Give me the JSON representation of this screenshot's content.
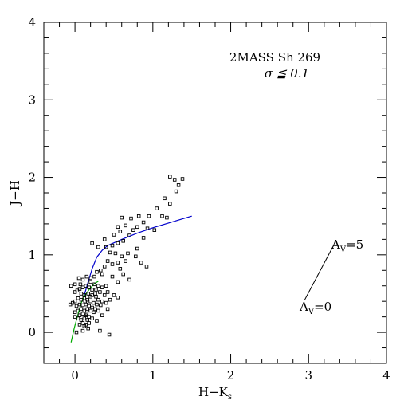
{
  "chart_data": {
    "type": "scatter",
    "title": "2MASS Sh 269",
    "subtitle": "σ ≦ 0.1",
    "xlabel": "H−K",
    "xlabel_sub": "s",
    "ylabel": "J−H",
    "xlim": [
      -0.4,
      4
    ],
    "ylim": [
      -0.4,
      4
    ],
    "xticks": [
      0,
      1,
      2,
      3,
      4
    ],
    "yticks": [
      0,
      1,
      2,
      3,
      4
    ],
    "xtick_labels": [
      "0",
      "1",
      "2",
      "3",
      "4"
    ],
    "ytick_labels": [
      "0",
      "1",
      "2",
      "3",
      "4"
    ],
    "grid": false,
    "reddening_vector": {
      "start": [
        2.95,
        0.42
      ],
      "end": [
        3.32,
        1.12
      ],
      "start_label": "A",
      "start_label_sub": "V",
      "start_label_tail": "=0",
      "end_label": "A",
      "end_label_sub": "V",
      "end_label_tail": "=5",
      "color": "#000000"
    },
    "curves": [
      {
        "color": "#0000cc",
        "points": [
          [
            0.12,
            0.48
          ],
          [
            0.16,
            0.62
          ],
          [
            0.22,
            0.82
          ],
          [
            0.28,
            0.97
          ],
          [
            0.35,
            1.06
          ],
          [
            0.42,
            1.12
          ],
          [
            0.6,
            1.2
          ],
          [
            0.8,
            1.28
          ],
          [
            1.0,
            1.35
          ],
          [
            1.2,
            1.41
          ],
          [
            1.4,
            1.47
          ],
          [
            1.5,
            1.5
          ]
        ]
      },
      {
        "color": "#00aa00",
        "points": [
          [
            -0.05,
            -0.13
          ],
          [
            -0.01,
            0.05
          ],
          [
            0.03,
            0.2
          ],
          [
            0.08,
            0.38
          ],
          [
            0.13,
            0.48
          ],
          [
            0.18,
            0.55
          ],
          [
            0.24,
            0.62
          ],
          [
            0.3,
            0.66
          ]
        ]
      }
    ],
    "series": [
      {
        "marker": "open-square",
        "color": "#000000",
        "points": [
          [
            1.22,
            2.01
          ],
          [
            1.28,
            1.97
          ],
          [
            1.38,
            1.98
          ],
          [
            1.33,
            1.9
          ],
          [
            1.3,
            1.82
          ],
          [
            1.15,
            1.73
          ],
          [
            1.22,
            1.66
          ],
          [
            1.05,
            1.6
          ],
          [
            1.12,
            1.5
          ],
          [
            1.18,
            1.48
          ],
          [
            0.95,
            1.5
          ],
          [
            0.82,
            1.5
          ],
          [
            0.72,
            1.47
          ],
          [
            0.6,
            1.48
          ],
          [
            0.88,
            1.42
          ],
          [
            0.8,
            1.36
          ],
          [
            0.93,
            1.34
          ],
          [
            1.02,
            1.32
          ],
          [
            0.75,
            1.32
          ],
          [
            0.65,
            1.38
          ],
          [
            0.55,
            1.36
          ],
          [
            0.58,
            1.3
          ],
          [
            0.5,
            1.26
          ],
          [
            0.7,
            1.25
          ],
          [
            0.88,
            1.22
          ],
          [
            0.62,
            1.18
          ],
          [
            0.55,
            1.15
          ],
          [
            0.48,
            1.12
          ],
          [
            0.4,
            1.1
          ],
          [
            0.3,
            1.1
          ],
          [
            0.22,
            1.15
          ],
          [
            0.38,
            1.2
          ],
          [
            0.45,
            1.03
          ],
          [
            0.52,
            1.02
          ],
          [
            0.6,
            0.98
          ],
          [
            0.68,
            1.02
          ],
          [
            0.8,
            1.08
          ],
          [
            0.78,
            0.98
          ],
          [
            0.85,
            0.9
          ],
          [
            0.92,
            0.85
          ],
          [
            0.65,
            0.92
          ],
          [
            0.55,
            0.9
          ],
          [
            0.48,
            0.88
          ],
          [
            0.58,
            0.82
          ],
          [
            0.62,
            0.75
          ],
          [
            0.7,
            0.68
          ],
          [
            0.55,
            0.65
          ],
          [
            0.48,
            0.72
          ],
          [
            0.42,
            0.92
          ],
          [
            0.38,
            0.85
          ],
          [
            0.33,
            0.8
          ],
          [
            0.35,
            0.75
          ],
          [
            0.28,
            0.78
          ],
          [
            0.25,
            0.72
          ],
          [
            0.2,
            0.7
          ],
          [
            0.15,
            0.72
          ],
          [
            0.1,
            0.68
          ],
          [
            0.05,
            0.7
          ],
          [
            0.0,
            0.62
          ],
          [
            -0.05,
            0.6
          ],
          [
            0.2,
            0.65
          ],
          [
            0.25,
            0.62
          ],
          [
            0.3,
            0.6
          ],
          [
            0.35,
            0.58
          ],
          [
            0.4,
            0.6
          ],
          [
            0.42,
            0.52
          ],
          [
            0.38,
            0.48
          ],
          [
            0.32,
            0.52
          ],
          [
            0.27,
            0.55
          ],
          [
            0.22,
            0.55
          ],
          [
            0.18,
            0.58
          ],
          [
            0.14,
            0.6
          ],
          [
            0.1,
            0.58
          ],
          [
            0.06,
            0.56
          ],
          [
            0.03,
            0.54
          ],
          [
            0.0,
            0.52
          ],
          [
            0.08,
            0.5
          ],
          [
            0.12,
            0.48
          ],
          [
            0.17,
            0.5
          ],
          [
            0.22,
            0.48
          ],
          [
            0.27,
            0.46
          ],
          [
            0.3,
            0.42
          ],
          [
            0.35,
            0.4
          ],
          [
            0.4,
            0.38
          ],
          [
            0.33,
            0.35
          ],
          [
            0.28,
            0.36
          ],
          [
            0.24,
            0.38
          ],
          [
            0.2,
            0.4
          ],
          [
            0.16,
            0.42
          ],
          [
            0.12,
            0.44
          ],
          [
            0.08,
            0.42
          ],
          [
            0.04,
            0.44
          ],
          [
            0.0,
            0.4
          ],
          [
            -0.03,
            0.38
          ],
          [
            -0.06,
            0.36
          ],
          [
            0.02,
            0.34
          ],
          [
            0.06,
            0.36
          ],
          [
            0.1,
            0.35
          ],
          [
            0.14,
            0.36
          ],
          [
            0.18,
            0.34
          ],
          [
            0.22,
            0.32
          ],
          [
            0.26,
            0.3
          ],
          [
            0.3,
            0.28
          ],
          [
            0.24,
            0.26
          ],
          [
            0.2,
            0.28
          ],
          [
            0.16,
            0.3
          ],
          [
            0.12,
            0.28
          ],
          [
            0.08,
            0.3
          ],
          [
            0.04,
            0.28
          ],
          [
            0.0,
            0.26
          ],
          [
            0.06,
            0.22
          ],
          [
            0.1,
            0.24
          ],
          [
            0.14,
            0.22
          ],
          [
            0.18,
            0.2
          ],
          [
            0.22,
            0.18
          ],
          [
            0.16,
            0.16
          ],
          [
            0.12,
            0.18
          ],
          [
            0.08,
            0.16
          ],
          [
            0.04,
            0.18
          ],
          [
            0.0,
            0.2
          ],
          [
            0.1,
            0.12
          ],
          [
            0.14,
            0.1
          ],
          [
            0.18,
            0.12
          ],
          [
            0.06,
            0.1
          ],
          [
            0.12,
            0.08
          ],
          [
            0.35,
            0.22
          ],
          [
            0.42,
            0.3
          ],
          [
            0.45,
            0.42
          ],
          [
            0.5,
            0.48
          ],
          [
            0.28,
            0.15
          ],
          [
            0.02,
            0.0
          ],
          [
            0.1,
            0.02
          ],
          [
            0.17,
            0.05
          ],
          [
            0.44,
            -0.03
          ],
          [
            0.55,
            0.45
          ],
          [
            0.32,
            0.02
          ],
          [
            0.26,
            0.5
          ],
          [
            0.2,
            0.46
          ],
          [
            0.15,
            0.24
          ],
          [
            0.13,
            0.4
          ],
          [
            0.07,
            0.62
          ]
        ]
      }
    ]
  }
}
